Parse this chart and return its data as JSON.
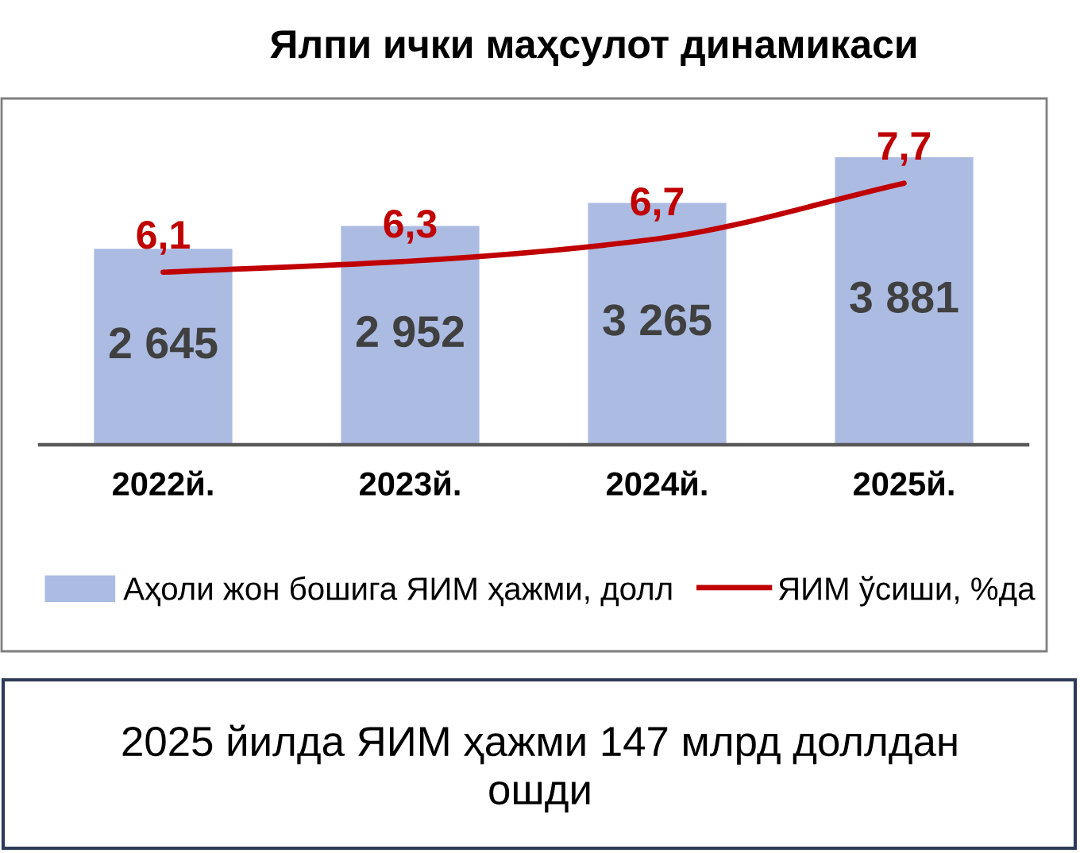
{
  "chart_data": {
    "type": "bar",
    "title": "Ялпи ички маҳсулот динамикаси",
    "categories": [
      "2022й.",
      "2023й.",
      "2024й.",
      "2025й."
    ],
    "series": [
      {
        "name": "Аҳоли жон бошига ЯИМ ҳажми, долл",
        "color": "#abbbe2",
        "values": [
          2645,
          2952,
          3265,
          3881
        ],
        "value_labels": [
          "2 645",
          "2 952",
          "3 265",
          "3 881"
        ]
      },
      {
        "name": "ЯИМ ўсиши, %да",
        "type": "line",
        "axis": "y2",
        "color": "#c00000",
        "values": [
          6.1,
          6.3,
          6.7,
          7.7
        ],
        "value_labels": [
          "6,1",
          "6,3",
          "6,7",
          "7,7"
        ]
      }
    ],
    "tick_labels": "x",
    "legend": "bottom",
    "annotations": [
      "2025 йилда ЯИМ ҳажми 147 млрд доллдан ошди"
    ]
  }
}
